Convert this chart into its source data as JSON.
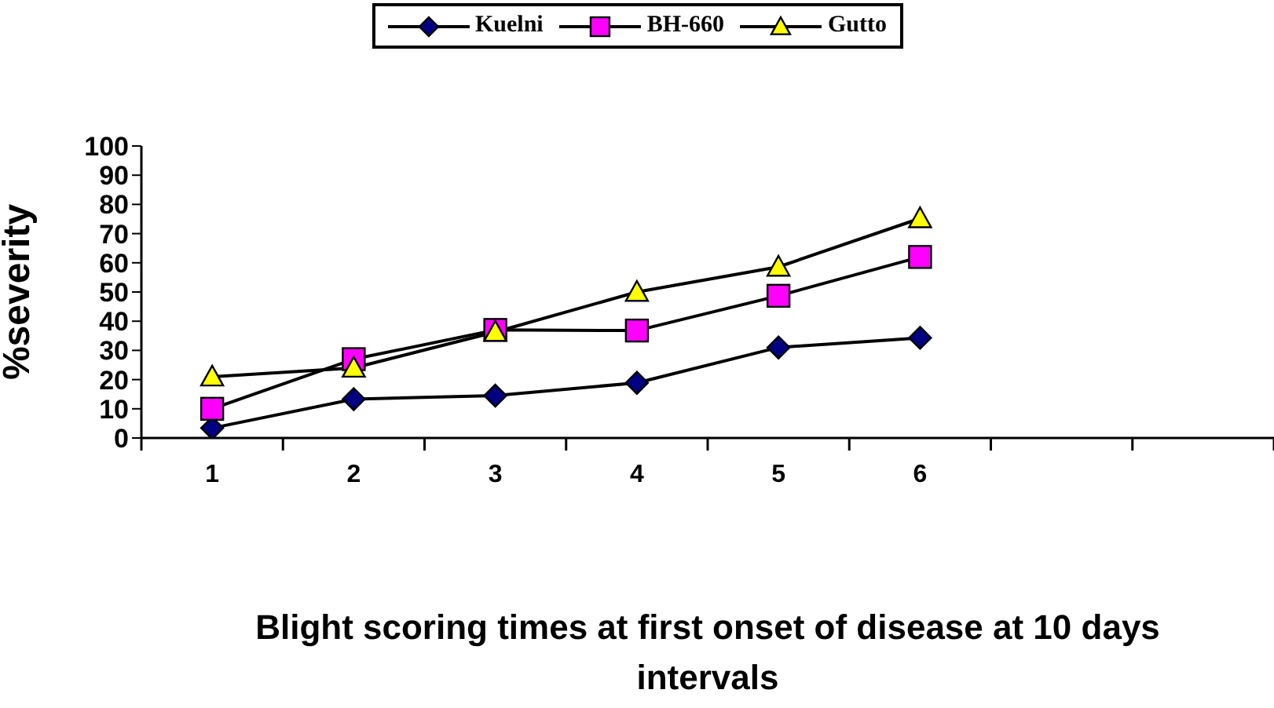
{
  "chart_data": {
    "type": "line",
    "xlabel": "Blight scoring times at first onset of disease at 10 days intervals",
    "ylabel": "%severity",
    "categories": [
      "1",
      "2",
      "3",
      "4",
      "5",
      "6",
      null,
      null
    ],
    "ylim": [
      0,
      100
    ],
    "yticks": [
      0,
      10,
      20,
      30,
      40,
      50,
      60,
      70,
      80,
      90,
      100
    ],
    "grid": false,
    "legend": "top",
    "line_style": "solid",
    "series": [
      {
        "name": "Kuelni",
        "color": "#000080",
        "marker": "diamond",
        "values": [
          3.4,
          13.3,
          14.5,
          18.9,
          31,
          34.3,
          null,
          null
        ]
      },
      {
        "name": "BH-660",
        "color": "#ff00ff",
        "marker": "square",
        "values": [
          10,
          27,
          37,
          36.8,
          48.7,
          62,
          null,
          null
        ]
      },
      {
        "name": "Gutto",
        "color": "#ffff00",
        "marker": "triangle",
        "values": [
          21,
          24,
          36.3,
          50,
          58.6,
          75.2,
          null,
          null
        ]
      }
    ]
  }
}
